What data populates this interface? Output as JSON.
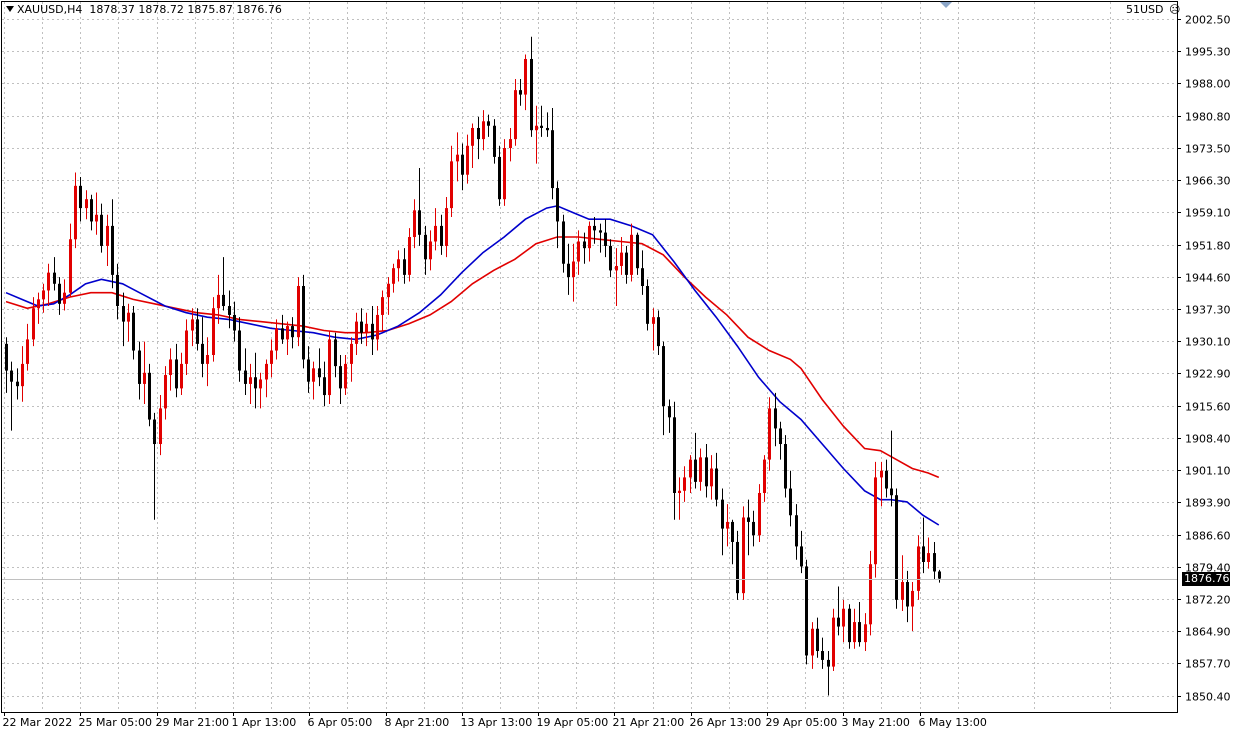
{
  "header": {
    "symbol": "XAUUSD,H4",
    "ohlc": "1878.37 1878.72 1875.87 1876.76"
  },
  "account": {
    "label": "51USD",
    "icon": "smiley-face-icon"
  },
  "current_price_label": "1876.76",
  "colors": {
    "bull": "#e10000",
    "bear": "#000000",
    "ma_fast": "#0000cc",
    "ma_slow": "#e10000",
    "grid": "#c0c0c0",
    "background": "#ffffff"
  },
  "chart_data": {
    "type": "candlestick",
    "title": "XAUUSD,H4",
    "ylim": [
      1846.8,
      2006.3
    ],
    "y_ticks": [
      "2002.50",
      "1995.30",
      "1988.00",
      "1980.80",
      "1973.50",
      "1966.30",
      "1959.10",
      "1951.80",
      "1944.60",
      "1937.30",
      "1930.10",
      "1922.90",
      "1915.60",
      "1908.40",
      "1901.10",
      "1893.90",
      "1886.60",
      "1879.40",
      "1872.20",
      "1864.90",
      "1857.70",
      "1850.40"
    ],
    "x_ticks": [
      "22 Mar 2022",
      "25 Mar 05:00",
      "29 Mar 21:00",
      "1 Apr 13:00",
      "6 Apr 05:00",
      "8 Apr 21:00",
      "13 Apr 13:00",
      "19 Apr 05:00",
      "21 Apr 21:00",
      "26 Apr 13:00",
      "29 Apr 05:00",
      "3 May 21:00",
      "6 May 13:00"
    ],
    "grid": true,
    "candles": [
      [
        1929.5,
        1931.0,
        1918.5,
        1923.5
      ],
      [
        1923.5,
        1925.5,
        1910.0,
        1921.0
      ],
      [
        1921.0,
        1924.0,
        1917.0,
        1920.0
      ],
      [
        1920.0,
        1929.0,
        1916.5,
        1925.0
      ],
      [
        1925.0,
        1934.0,
        1923.5,
        1930.5
      ],
      [
        1930.5,
        1940.0,
        1929.0,
        1937.5
      ],
      [
        1937.5,
        1941.0,
        1934.0,
        1939.5
      ],
      [
        1939.5,
        1943.0,
        1936.5,
        1941.5
      ],
      [
        1941.5,
        1947.5,
        1938.0,
        1945.5
      ],
      [
        1945.5,
        1949.0,
        1941.5,
        1943.0
      ],
      [
        1943.0,
        1944.5,
        1936.0,
        1938.5
      ],
      [
        1938.5,
        1944.0,
        1937.0,
        1941.0
      ],
      [
        1941.0,
        1956.5,
        1940.0,
        1953.0
      ],
      [
        1953.0,
        1968.0,
        1951.0,
        1965.0
      ],
      [
        1965.0,
        1967.0,
        1957.0,
        1960.0
      ],
      [
        1960.0,
        1964.0,
        1957.5,
        1962.0
      ],
      [
        1962.0,
        1963.0,
        1955.0,
        1957.0
      ],
      [
        1957.0,
        1963.5,
        1954.0,
        1958.5
      ],
      [
        1958.5,
        1961.0,
        1950.0,
        1951.5
      ],
      [
        1951.5,
        1958.5,
        1947.0,
        1956.0
      ],
      [
        1956.0,
        1962.0,
        1942.0,
        1945.0
      ],
      [
        1945.0,
        1947.5,
        1935.0,
        1938.0
      ],
      [
        1938.0,
        1941.0,
        1929.0,
        1934.5
      ],
      [
        1934.5,
        1938.5,
        1930.0,
        1936.5
      ],
      [
        1936.5,
        1938.0,
        1926.0,
        1928.0
      ],
      [
        1928.0,
        1930.0,
        1917.0,
        1920.5
      ],
      [
        1920.5,
        1930.0,
        1916.0,
        1923.0
      ],
      [
        1923.0,
        1925.0,
        1911.0,
        1912.5
      ],
      [
        1912.5,
        1914.0,
        1890.0,
        1907.0
      ],
      [
        1907.0,
        1918.0,
        1904.5,
        1915.0
      ],
      [
        1915.0,
        1924.5,
        1912.5,
        1922.5
      ],
      [
        1922.5,
        1928.5,
        1919.0,
        1926.0
      ],
      [
        1926.0,
        1929.5,
        1917.5,
        1919.5
      ],
      [
        1919.5,
        1927.5,
        1918.0,
        1925.0
      ],
      [
        1925.0,
        1935.0,
        1922.5,
        1932.5
      ],
      [
        1932.5,
        1937.5,
        1929.0,
        1935.0
      ],
      [
        1935.0,
        1937.5,
        1928.0,
        1929.5
      ],
      [
        1929.5,
        1935.5,
        1922.0,
        1925.0
      ],
      [
        1925.0,
        1931.0,
        1920.0,
        1927.0
      ],
      [
        1927.0,
        1940.0,
        1925.5,
        1937.5
      ],
      [
        1937.5,
        1945.0,
        1934.0,
        1940.5
      ],
      [
        1940.5,
        1949.0,
        1937.0,
        1938.0
      ],
      [
        1938.0,
        1941.5,
        1933.0,
        1936.0
      ],
      [
        1936.0,
        1939.0,
        1930.0,
        1932.5
      ],
      [
        1932.5,
        1935.5,
        1921.0,
        1923.5
      ],
      [
        1923.5,
        1928.5,
        1918.0,
        1920.5
      ],
      [
        1920.5,
        1925.0,
        1916.0,
        1922.0
      ],
      [
        1922.0,
        1927.5,
        1915.0,
        1919.5
      ],
      [
        1919.5,
        1923.0,
        1915.0,
        1921.5
      ],
      [
        1921.5,
        1926.0,
        1917.5,
        1925.0
      ],
      [
        1925.0,
        1930.5,
        1922.0,
        1928.0
      ],
      [
        1928.0,
        1935.0,
        1926.0,
        1933.0
      ],
      [
        1933.0,
        1936.0,
        1929.5,
        1930.5
      ],
      [
        1930.5,
        1934.5,
        1927.0,
        1933.5
      ],
      [
        1933.5,
        1935.5,
        1928.5,
        1931.0
      ],
      [
        1931.0,
        1944.5,
        1929.0,
        1942.5
      ],
      [
        1942.5,
        1945.0,
        1924.0,
        1926.0
      ],
      [
        1926.0,
        1929.0,
        1918.5,
        1921.0
      ],
      [
        1921.0,
        1925.5,
        1917.0,
        1924.0
      ],
      [
        1924.0,
        1928.5,
        1920.0,
        1922.0
      ],
      [
        1922.0,
        1925.5,
        1915.5,
        1918.0
      ],
      [
        1918.0,
        1932.5,
        1916.0,
        1930.5
      ],
      [
        1930.5,
        1932.0,
        1922.0,
        1924.5
      ],
      [
        1924.5,
        1927.0,
        1916.0,
        1919.5
      ],
      [
        1919.5,
        1927.0,
        1918.0,
        1925.0
      ],
      [
        1925.0,
        1931.0,
        1921.0,
        1929.5
      ],
      [
        1929.5,
        1936.5,
        1927.0,
        1934.5
      ],
      [
        1934.5,
        1937.5,
        1929.5,
        1932.0
      ],
      [
        1932.0,
        1936.5,
        1929.0,
        1934.0
      ],
      [
        1934.0,
        1938.0,
        1927.0,
        1930.5
      ],
      [
        1930.5,
        1938.0,
        1928.0,
        1936.0
      ],
      [
        1936.0,
        1941.5,
        1932.5,
        1940.0
      ],
      [
        1940.0,
        1944.5,
        1936.0,
        1943.0
      ],
      [
        1943.0,
        1947.5,
        1941.0,
        1946.5
      ],
      [
        1946.5,
        1950.5,
        1943.5,
        1948.5
      ],
      [
        1948.5,
        1951.0,
        1943.0,
        1945.0
      ],
      [
        1945.0,
        1955.5,
        1943.5,
        1953.5
      ],
      [
        1953.5,
        1962.0,
        1951.0,
        1959.5
      ],
      [
        1959.5,
        1969.0,
        1951.5,
        1954.0
      ],
      [
        1954.0,
        1956.0,
        1945.0,
        1948.5
      ],
      [
        1948.5,
        1955.0,
        1946.0,
        1952.5
      ],
      [
        1952.5,
        1960.0,
        1950.5,
        1956.0
      ],
      [
        1956.0,
        1958.5,
        1949.5,
        1951.5
      ],
      [
        1951.5,
        1962.5,
        1949.0,
        1960.0
      ],
      [
        1960.0,
        1974.0,
        1958.0,
        1970.5
      ],
      [
        1970.5,
        1977.0,
        1966.0,
        1972.0
      ],
      [
        1972.0,
        1974.5,
        1964.0,
        1967.5
      ],
      [
        1967.5,
        1976.5,
        1965.5,
        1974.0
      ],
      [
        1974.0,
        1979.0,
        1969.0,
        1978.0
      ],
      [
        1978.0,
        1980.5,
        1971.0,
        1975.5
      ],
      [
        1975.5,
        1982.0,
        1973.0,
        1979.5
      ],
      [
        1979.5,
        1981.0,
        1976.0,
        1978.5
      ],
      [
        1978.5,
        1980.0,
        1970.0,
        1971.5
      ],
      [
        1971.5,
        1974.0,
        1960.5,
        1962.0
      ],
      [
        1962.0,
        1975.5,
        1960.5,
        1973.5
      ],
      [
        1973.5,
        1978.0,
        1970.5,
        1975.5
      ],
      [
        1975.5,
        1989.0,
        1974.0,
        1986.5
      ],
      [
        1986.5,
        1989.0,
        1983.0,
        1985.5
      ],
      [
        1985.5,
        1994.5,
        1982.0,
        1993.5
      ],
      [
        1993.5,
        1998.5,
        1976.0,
        1977.5
      ],
      [
        1977.5,
        1983.0,
        1970.0,
        1978.5
      ],
      [
        1978.5,
        1983.0,
        1976.0,
        1978.0
      ],
      [
        1978.0,
        1981.5,
        1976.0,
        1977.5
      ],
      [
        1977.5,
        1982.5,
        1962.0,
        1964.5
      ],
      [
        1964.5,
        1966.0,
        1951.0,
        1957.0
      ],
      [
        1957.0,
        1958.5,
        1945.5,
        1947.5
      ],
      [
        1947.5,
        1952.0,
        1940.5,
        1944.5
      ],
      [
        1944.5,
        1952.0,
        1939.0,
        1948.0
      ],
      [
        1948.0,
        1955.0,
        1945.0,
        1952.5
      ],
      [
        1952.5,
        1954.5,
        1947.5,
        1951.0
      ],
      [
        1951.0,
        1957.0,
        1948.0,
        1956.0
      ],
      [
        1956.0,
        1958.0,
        1952.0,
        1955.0
      ],
      [
        1955.0,
        1956.5,
        1950.0,
        1954.5
      ],
      [
        1954.5,
        1957.5,
        1949.0,
        1951.5
      ],
      [
        1951.5,
        1953.0,
        1944.5,
        1946.0
      ],
      [
        1946.0,
        1951.0,
        1938.0,
        1947.0
      ],
      [
        1947.0,
        1953.5,
        1945.0,
        1950.0
      ],
      [
        1950.0,
        1951.5,
        1943.0,
        1945.0
      ],
      [
        1945.0,
        1956.5,
        1943.5,
        1954.0
      ],
      [
        1954.0,
        1954.5,
        1945.0,
        1946.5
      ],
      [
        1946.5,
        1950.5,
        1940.5,
        1942.5
      ],
      [
        1942.5,
        1944.0,
        1932.5,
        1934.0
      ],
      [
        1934.0,
        1937.5,
        1928.0,
        1935.5
      ],
      [
        1935.5,
        1937.0,
        1927.0,
        1929.0
      ],
      [
        1929.0,
        1930.0,
        1909.0,
        1915.5
      ],
      [
        1915.5,
        1917.0,
        1909.5,
        1913.0
      ],
      [
        1913.0,
        1916.5,
        1890.0,
        1896.0
      ],
      [
        1896.0,
        1899.5,
        1890.0,
        1896.5
      ],
      [
        1896.5,
        1902.0,
        1894.0,
        1899.5
      ],
      [
        1899.5,
        1904.5,
        1896.0,
        1903.5
      ],
      [
        1903.5,
        1909.5,
        1897.0,
        1898.5
      ],
      [
        1898.5,
        1906.0,
        1896.5,
        1904.0
      ],
      [
        1904.0,
        1907.0,
        1895.0,
        1897.5
      ],
      [
        1897.5,
        1904.5,
        1894.5,
        1901.5
      ],
      [
        1901.5,
        1905.0,
        1893.0,
        1894.5
      ],
      [
        1894.5,
        1897.0,
        1882.0,
        1888.0
      ],
      [
        1888.0,
        1893.5,
        1884.0,
        1889.5
      ],
      [
        1889.5,
        1890.0,
        1880.0,
        1885.0
      ],
      [
        1885.0,
        1887.5,
        1872.0,
        1873.5
      ],
      [
        1873.5,
        1893.0,
        1872.0,
        1890.5
      ],
      [
        1890.5,
        1894.5,
        1882.0,
        1889.5
      ],
      [
        1889.5,
        1892.0,
        1884.0,
        1886.5
      ],
      [
        1886.5,
        1898.0,
        1885.0,
        1896.0
      ],
      [
        1896.0,
        1904.5,
        1894.0,
        1903.5
      ],
      [
        1903.5,
        1917.5,
        1901.0,
        1915.0
      ],
      [
        1915.0,
        1918.5,
        1906.5,
        1910.5
      ],
      [
        1910.5,
        1912.0,
        1903.5,
        1907.0
      ],
      [
        1907.0,
        1909.0,
        1895.0,
        1897.0
      ],
      [
        1897.0,
        1901.0,
        1888.5,
        1891.0
      ],
      [
        1891.0,
        1893.5,
        1881.0,
        1884.0
      ],
      [
        1884.0,
        1887.5,
        1878.0,
        1879.5
      ],
      [
        1879.5,
        1881.0,
        1857.5,
        1859.5
      ],
      [
        1859.5,
        1867.0,
        1856.5,
        1865.5
      ],
      [
        1865.5,
        1868.0,
        1859.0,
        1860.5
      ],
      [
        1860.5,
        1863.5,
        1856.5,
        1858.5
      ],
      [
        1858.5,
        1860.5,
        1850.5,
        1857.0
      ],
      [
        1857.0,
        1870.0,
        1856.0,
        1868.0
      ],
      [
        1868.0,
        1875.0,
        1864.0,
        1866.0
      ],
      [
        1866.0,
        1872.0,
        1862.5,
        1870.0
      ],
      [
        1870.0,
        1871.0,
        1861.0,
        1862.5
      ],
      [
        1862.5,
        1870.0,
        1861.0,
        1867.0
      ],
      [
        1867.0,
        1871.5,
        1861.5,
        1862.5
      ],
      [
        1862.5,
        1869.0,
        1860.5,
        1866.5
      ],
      [
        1866.5,
        1883.0,
        1864.0,
        1880.0
      ],
      [
        1880.0,
        1903.0,
        1877.0,
        1899.5
      ],
      [
        1899.5,
        1903.0,
        1893.0,
        1901.0
      ],
      [
        1901.0,
        1903.5,
        1895.0,
        1897.0
      ],
      [
        1897.0,
        1910.0,
        1893.0,
        1895.5
      ],
      [
        1895.5,
        1897.0,
        1870.0,
        1872.0
      ],
      [
        1872.0,
        1882.0,
        1869.5,
        1876.0
      ],
      [
        1876.0,
        1878.5,
        1867.0,
        1870.5
      ],
      [
        1870.5,
        1876.0,
        1865.0,
        1874.0
      ],
      [
        1874.0,
        1886.5,
        1872.0,
        1884.0
      ],
      [
        1884.0,
        1890.5,
        1878.0,
        1880.5
      ],
      [
        1880.5,
        1886.0,
        1879.0,
        1882.5
      ],
      [
        1882.5,
        1885.0,
        1876.5,
        1878.37
      ],
      [
        1878.37,
        1878.72,
        1875.87,
        1876.76
      ]
    ],
    "ma_fast": [
      [
        0,
        1941.0
      ],
      [
        3,
        1939.5
      ],
      [
        6,
        1938.0
      ],
      [
        9,
        1938.5
      ],
      [
        12,
        1940.5
      ],
      [
        15,
        1943.0
      ],
      [
        18,
        1944.0
      ],
      [
        22,
        1943.0
      ],
      [
        26,
        1940.5
      ],
      [
        30,
        1938.0
      ],
      [
        34,
        1936.5
      ],
      [
        38,
        1935.5
      ],
      [
        42,
        1935.0
      ],
      [
        46,
        1934.0
      ],
      [
        50,
        1933.0
      ],
      [
        54,
        1932.5
      ],
      [
        58,
        1932.0
      ],
      [
        62,
        1931.0
      ],
      [
        66,
        1930.5
      ],
      [
        70,
        1931.5
      ],
      [
        74,
        1933.5
      ],
      [
        78,
        1936.5
      ],
      [
        82,
        1940.5
      ],
      [
        86,
        1945.5
      ],
      [
        90,
        1950.0
      ],
      [
        94,
        1953.5
      ],
      [
        98,
        1957.5
      ],
      [
        102,
        1960.0
      ],
      [
        104,
        1960.5
      ],
      [
        107,
        1959.0
      ],
      [
        110,
        1957.5
      ],
      [
        114,
        1957.5
      ],
      [
        118,
        1956.0
      ],
      [
        122,
        1954.0
      ],
      [
        126,
        1948.0
      ],
      [
        130,
        1941.5
      ],
      [
        134,
        1935.5
      ],
      [
        138,
        1929.0
      ],
      [
        142,
        1922.0
      ],
      [
        146,
        1916.5
      ],
      [
        150,
        1912.5
      ],
      [
        154,
        1907.0
      ],
      [
        158,
        1901.5
      ],
      [
        162,
        1896.5
      ],
      [
        165,
        1894.5
      ],
      [
        167,
        1894.5
      ],
      [
        170,
        1894.0
      ],
      [
        173,
        1891.0
      ],
      [
        176,
        1888.8
      ]
    ],
    "ma_slow": [
      [
        0,
        1939.0
      ],
      [
        4,
        1937.5
      ],
      [
        8,
        1938.5
      ],
      [
        12,
        1940.0
      ],
      [
        16,
        1941.0
      ],
      [
        20,
        1941.0
      ],
      [
        24,
        1939.5
      ],
      [
        28,
        1938.5
      ],
      [
        32,
        1937.5
      ],
      [
        36,
        1936.5
      ],
      [
        40,
        1936.0
      ],
      [
        44,
        1935.0
      ],
      [
        48,
        1934.5
      ],
      [
        52,
        1934.0
      ],
      [
        56,
        1933.5
      ],
      [
        60,
        1932.5
      ],
      [
        64,
        1932.0
      ],
      [
        68,
        1932.0
      ],
      [
        72,
        1932.5
      ],
      [
        76,
        1934.0
      ],
      [
        80,
        1936.0
      ],
      [
        84,
        1939.0
      ],
      [
        88,
        1943.0
      ],
      [
        92,
        1946.0
      ],
      [
        96,
        1948.5
      ],
      [
        100,
        1952.0
      ],
      [
        104,
        1953.5
      ],
      [
        108,
        1953.5
      ],
      [
        112,
        1953.0
      ],
      [
        116,
        1952.5
      ],
      [
        120,
        1952.0
      ],
      [
        124,
        1949.5
      ],
      [
        128,
        1944.5
      ],
      [
        132,
        1940.0
      ],
      [
        136,
        1936.0
      ],
      [
        140,
        1931.0
      ],
      [
        144,
        1928.0
      ],
      [
        148,
        1926.0
      ],
      [
        150,
        1924.0
      ],
      [
        154,
        1917.0
      ],
      [
        158,
        1911.0
      ],
      [
        162,
        1906.0
      ],
      [
        165,
        1905.5
      ],
      [
        168,
        1903.5
      ],
      [
        171,
        1901.5
      ],
      [
        174,
        1900.5
      ],
      [
        176,
        1899.5
      ]
    ],
    "current_price": 1876.76
  }
}
